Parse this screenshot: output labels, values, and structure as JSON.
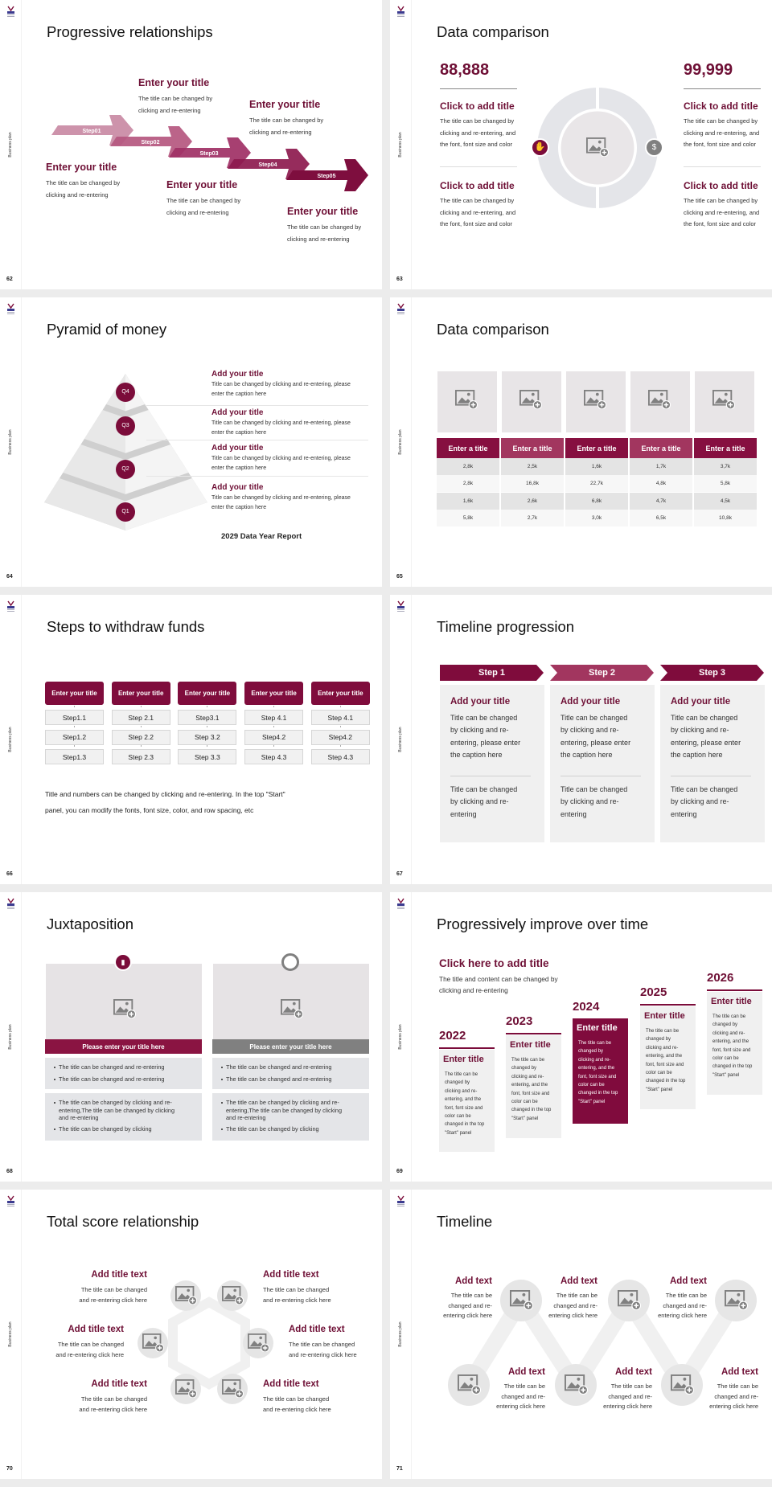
{
  "colors": {
    "accent": "#7b0c3a",
    "accent_mid": "#a2365f",
    "title_text": "#6e0f35",
    "panel": "#f0f0f0",
    "grey_icon": "#7f7f7f"
  },
  "common": {
    "side_label": "Business plan"
  },
  "slides": [
    {
      "page": "62",
      "title": "Progressive relationships",
      "steps": [
        "Step01",
        "Step02",
        "Step03",
        "Step04",
        "Step05"
      ],
      "blocks": [
        {
          "title": "Enter your title",
          "desc": [
            "The title can be changed by",
            "clicking and re-entering"
          ]
        },
        {
          "title": "Enter your title",
          "desc": [
            "The title can be changed by",
            "clicking and re-entering"
          ]
        },
        {
          "title": "Enter your title",
          "desc": [
            "The title can be changed by",
            "clicking and re-entering"
          ]
        },
        {
          "title": "Enter your title",
          "desc": [
            "The title can be changed by",
            "clicking and re-entering"
          ]
        },
        {
          "title": "Enter your title",
          "desc": [
            "The title can be changed by",
            "clicking and re-entering"
          ]
        }
      ]
    },
    {
      "page": "63",
      "title": "Data comparison",
      "columns": [
        {
          "value": "88,888",
          "items": [
            {
              "title": "Click to add title",
              "desc": [
                "The title can be changed by",
                "clicking and re-entering, and",
                "the font, font size and color"
              ]
            },
            {
              "title": "Click to add title",
              "desc": [
                "The title can be changed by",
                "clicking and re-entering, and",
                "the font, font size and color"
              ]
            }
          ]
        },
        {
          "value": "99,999",
          "items": [
            {
              "title": "Click to add title",
              "desc": [
                "The title can be changed by",
                "clicking and re-entering, and",
                "the font, font size and color"
              ]
            },
            {
              "title": "Click to add title",
              "desc": [
                "The title can be changed by",
                "clicking and re-entering, and",
                "the font, font size and color"
              ]
            }
          ]
        }
      ],
      "icons": [
        "hand-money-icon",
        "money-bag-icon"
      ]
    },
    {
      "page": "64",
      "title": "Pyramid of money",
      "levels": [
        "Q4",
        "Q3",
        "Q2",
        "Q1"
      ],
      "items": [
        {
          "title": "Add your title",
          "desc": [
            "Title can be changed by clicking and re-entering, please",
            "enter the caption here"
          ]
        },
        {
          "title": "Add your title",
          "desc": [
            "Title can be changed by clicking and re-entering, please",
            "enter the caption here"
          ]
        },
        {
          "title": "Add your title",
          "desc": [
            "Title can be changed by clicking and re-entering, please",
            "enter the caption here"
          ]
        },
        {
          "title": "Add your title",
          "desc": [
            "Title can be changed by clicking and re-entering, please",
            "enter the caption here"
          ]
        }
      ],
      "footer": "2029 Data Year Report"
    },
    {
      "page": "65",
      "title": "Data comparison",
      "table": {
        "headers": [
          "Enter a title",
          "Enter a title",
          "Enter a title",
          "Enter a title",
          "Enter a title"
        ],
        "rows": [
          [
            "2,8k",
            "2,5k",
            "1,6k",
            "1,7k",
            "3,7k"
          ],
          [
            "2,8k",
            "16,8k",
            "22,7k",
            "4,8k",
            "5,8k"
          ],
          [
            "1,6k",
            "2,6k",
            "6,8k",
            "4,7k",
            "4,5k"
          ],
          [
            "5,8k",
            "2,7k",
            "3,0k",
            "6,5k",
            "10,8k"
          ]
        ]
      }
    },
    {
      "page": "66",
      "title": "Steps to withdraw funds",
      "columns": [
        {
          "header": "Enter your title",
          "steps": [
            "Step1.1",
            "Step1.2",
            "Step1.3"
          ]
        },
        {
          "header": "Enter your title",
          "steps": [
            "Step 2.1",
            "Step 2.2",
            "Step 2.3"
          ]
        },
        {
          "header": "Enter your title",
          "steps": [
            "Step3.1",
            "Step 3.2",
            "Step 3.3"
          ]
        },
        {
          "header": "Enter your title",
          "steps": [
            "Step 4.1",
            "Step4.2",
            "Step 4.3"
          ]
        },
        {
          "header": "Enter your title",
          "steps": [
            "Step 4.1",
            "Step4.2",
            "Step 4.3"
          ]
        }
      ],
      "note": [
        "Title and numbers can be changed by clicking and re-entering. In the top \"Start\"",
        "panel, you can modify the fonts, font size, color, and row spacing, etc"
      ]
    },
    {
      "page": "67",
      "title": "Timeline progression",
      "cards": [
        {
          "step": "Step 1",
          "title": "Add your title",
          "desc": [
            "Title can be changed",
            "by clicking and re-",
            "entering, please enter",
            "the caption here"
          ],
          "note": [
            "Title can be changed",
            "by clicking and re-",
            "entering"
          ]
        },
        {
          "step": "Step 2",
          "title": "Add your title",
          "desc": [
            "Title can be changed",
            "by clicking and re-",
            "entering, please enter",
            "the caption here"
          ],
          "note": [
            "Title can be changed",
            "by clicking and re-",
            "entering"
          ]
        },
        {
          "step": "Step 3",
          "title": "Add your title",
          "desc": [
            "Title can be changed",
            "by clicking and re-",
            "entering, please enter",
            "the caption here"
          ],
          "note": [
            "Title can be changed",
            "by clicking and re-",
            "entering"
          ]
        }
      ]
    },
    {
      "page": "68",
      "title": "Juxtaposition",
      "panels": [
        {
          "icon": "bar-chart-icon",
          "header": "Please enter your title here",
          "list1": [
            "The title can be changed and re-entering",
            "The title can be changed and re-entering"
          ],
          "list2": [
            [
              "The title can be changed by clicking and re-",
              "entering,The title can be changed by clicking",
              "and re-entering"
            ],
            [
              "The title can be changed by clicking"
            ]
          ]
        },
        {
          "icon": "clock-icon",
          "header": "Please enter your title here",
          "list1": [
            "The title can be changed and re-entering",
            "The title can be changed and re-entering"
          ],
          "list2": [
            [
              "The title can be changed by clicking and re-",
              "entering,The title can be changed by clicking",
              "and re-entering"
            ],
            [
              "The title can be changed by clicking"
            ]
          ]
        }
      ]
    },
    {
      "page": "69",
      "title": "Progressively improve over time",
      "heading": "Click here to add title",
      "intro": [
        "The title and content can be changed by",
        "clicking and re-entering"
      ],
      "years": [
        {
          "year": "2022",
          "title": "Enter title",
          "desc": [
            "The title can be",
            "changed by",
            "clicking and re-",
            "entering, and the",
            "font, font size and",
            "color can be",
            "changed in the top",
            "\"Start\" panel"
          ]
        },
        {
          "year": "2023",
          "title": "Enter title",
          "desc": [
            "The title can be",
            "changed by",
            "clicking and re-",
            "entering, and the",
            "font, font size and",
            "color can be",
            "changed in the top",
            "\"Start\" panel"
          ]
        },
        {
          "year": "2024",
          "title": "Enter title",
          "desc": [
            "The title can be",
            "changed by",
            "clicking and re-",
            "entering, and the",
            "font, font size and",
            "color can be",
            "changed in the top",
            "\"Start\" panel"
          ]
        },
        {
          "year": "2025",
          "title": "Enter title",
          "desc": [
            "The title can be",
            "changed by",
            "clicking and re-",
            "entering, and the",
            "font, font size and",
            "color can be",
            "changed in the top",
            "\"Start\" panel"
          ]
        },
        {
          "year": "2026",
          "title": "Enter title",
          "desc": [
            "The title can be",
            "changed by",
            "clicking and re-",
            "entering, and the",
            "font, font size and",
            "color can be",
            "changed in the top",
            "\"Start\" panel"
          ]
        }
      ],
      "highlight_year": "2024"
    },
    {
      "page": "70",
      "title": "Total score relationship",
      "items": [
        {
          "title": "Add title text",
          "desc": [
            "The title can be changed",
            "and re-entering click here"
          ]
        },
        {
          "title": "Add title text",
          "desc": [
            "The title can be changed",
            "and re-entering click here"
          ]
        },
        {
          "title": "Add title text",
          "desc": [
            "The title can be changed",
            "and re-entering click here"
          ]
        },
        {
          "title": "Add title text",
          "desc": [
            "The title can be changed",
            "and re-entering click here"
          ]
        },
        {
          "title": "Add title text",
          "desc": [
            "The title can be changed",
            "and re-entering click here"
          ]
        },
        {
          "title": "Add title text",
          "desc": [
            "The title can be changed",
            "and re-entering click here"
          ]
        }
      ]
    },
    {
      "page": "71",
      "title": "Timeline",
      "items": [
        {
          "title": "Add text",
          "desc": [
            "The title can be",
            "changed and re-",
            "entering click here"
          ]
        },
        {
          "title": "Add text",
          "desc": [
            "The title can be",
            "changed and re-",
            "entering click here"
          ]
        },
        {
          "title": "Add text",
          "desc": [
            "The title can be",
            "changed and re-",
            "entering click here"
          ]
        },
        {
          "title": "Add text",
          "desc": [
            "The title can be",
            "changed and re-",
            "entering click here"
          ]
        },
        {
          "title": "Add text",
          "desc": [
            "The title can be",
            "changed and re-",
            "entering click here"
          ]
        },
        {
          "title": "Add text",
          "desc": [
            "The title can be",
            "changed and re-",
            "entering click here"
          ]
        }
      ]
    }
  ]
}
